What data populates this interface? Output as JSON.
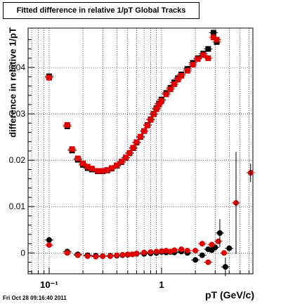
{
  "chart_data": {
    "type": "scatter",
    "title": "Fitted difference in relative 1/pT  Global Tracks",
    "xlabel": "pT (GeV/c)",
    "ylabel": "difference in relative 1/pT",
    "x_scale": "log",
    "xlim": [
      0.065,
      6.5
    ],
    "ylim": [
      -0.0045,
      0.0485
    ],
    "x_ticks": [
      {
        "value": 0.1,
        "label": "10⁻¹"
      },
      {
        "value": 1,
        "label": "1"
      }
    ],
    "y_ticks": [
      {
        "value": 0,
        "label": "0"
      },
      {
        "value": 0.01,
        "label": "0.01"
      },
      {
        "value": 0.02,
        "label": "0.02"
      },
      {
        "value": 0.03,
        "label": "0.03"
      },
      {
        "value": 0.04,
        "label": "0.04"
      }
    ],
    "grid": true,
    "series": [
      {
        "color": "#000000",
        "points": [
          [
            0.1,
            0.0381
          ],
          [
            0.145,
            0.0273
          ],
          [
            0.16,
            0.0221
          ],
          [
            0.18,
            0.0201
          ],
          [
            0.2,
            0.019
          ],
          [
            0.22,
            0.0183
          ],
          [
            0.24,
            0.018
          ],
          [
            0.27,
            0.0176
          ],
          [
            0.3,
            0.0176
          ],
          [
            0.33,
            0.0178
          ],
          [
            0.36,
            0.0182
          ],
          [
            0.4,
            0.0188
          ],
          [
            0.44,
            0.0196
          ],
          [
            0.48,
            0.0205
          ],
          [
            0.52,
            0.0215
          ],
          [
            0.56,
            0.0226
          ],
          [
            0.6,
            0.0238
          ],
          [
            0.65,
            0.025
          ],
          [
            0.7,
            0.0263
          ],
          [
            0.75,
            0.0276
          ],
          [
            0.8,
            0.0288
          ],
          [
            0.85,
            0.03
          ],
          [
            0.9,
            0.0312
          ],
          [
            0.95,
            0.0322
          ],
          [
            1.0,
            0.0331
          ],
          [
            1.1,
            0.0345
          ],
          [
            1.2,
            0.0356
          ],
          [
            1.3,
            0.0368
          ],
          [
            1.4,
            0.0377
          ],
          [
            1.5,
            0.0385
          ],
          [
            1.7,
            0.0397
          ],
          [
            1.9,
            0.041
          ],
          [
            2.1,
            0.042
          ],
          [
            2.35,
            0.043
          ],
          [
            2.6,
            0.044
          ],
          [
            2.9,
            0.0475
          ],
          [
            3.1,
            0.0455
          ]
        ]
      },
      {
        "color": "#e00000",
        "points": [
          [
            0.1,
            0.0378
          ],
          [
            0.145,
            0.0276
          ],
          [
            0.16,
            0.0224
          ],
          [
            0.18,
            0.0204
          ],
          [
            0.2,
            0.0193
          ],
          [
            0.22,
            0.0186
          ],
          [
            0.24,
            0.0182
          ],
          [
            0.27,
            0.0177
          ],
          [
            0.3,
            0.0177
          ],
          [
            0.33,
            0.0179
          ],
          [
            0.36,
            0.0183
          ],
          [
            0.4,
            0.0189
          ],
          [
            0.44,
            0.0197
          ],
          [
            0.48,
            0.0206
          ],
          [
            0.52,
            0.0216
          ],
          [
            0.56,
            0.0227
          ],
          [
            0.6,
            0.0239
          ],
          [
            0.65,
            0.0251
          ],
          [
            0.7,
            0.0263
          ],
          [
            0.75,
            0.0275
          ],
          [
            0.8,
            0.0287
          ],
          [
            0.85,
            0.0299
          ],
          [
            0.9,
            0.031
          ],
          [
            0.95,
            0.032
          ],
          [
            1.0,
            0.0328
          ],
          [
            1.1,
            0.0342
          ],
          [
            1.2,
            0.0353
          ],
          [
            1.3,
            0.0364
          ],
          [
            1.4,
            0.0374
          ],
          [
            1.5,
            0.0382
          ],
          [
            1.7,
            0.0393
          ],
          [
            1.9,
            0.0406
          ],
          [
            2.1,
            0.0418
          ],
          [
            2.35,
            0.0427
          ],
          [
            2.6,
            0.042
          ],
          [
            2.9,
            0.0465
          ],
          [
            3.1,
            0.046
          ]
        ]
      },
      {
        "color": "#000000",
        "points": [
          [
            0.1,
            0.0028
          ],
          [
            0.145,
            0.0003
          ],
          [
            0.18,
            -0.0003
          ],
          [
            0.22,
            -0.0005
          ],
          [
            0.26,
            -0.0006
          ],
          [
            0.3,
            -0.0007
          ],
          [
            0.35,
            -0.0006
          ],
          [
            0.4,
            -0.0006
          ],
          [
            0.45,
            -0.0005
          ],
          [
            0.5,
            -0.0004
          ],
          [
            0.55,
            -0.0003
          ],
          [
            0.6,
            -0.0002
          ],
          [
            0.7,
            -0.0002
          ],
          [
            0.8,
            -0.0001
          ],
          [
            0.9,
            0.0
          ],
          [
            1.0,
            0.0002
          ],
          [
            1.1,
            0.0001
          ],
          [
            1.2,
            0.0002
          ],
          [
            1.3,
            0.0001
          ],
          [
            1.5,
            0.0003
          ],
          [
            1.7,
            0.0
          ],
          [
            2.0,
            -0.0015
          ],
          [
            2.3,
            -0.0005
          ],
          [
            2.6,
            0.0008
          ],
          [
            2.8,
            0.0006
          ],
          [
            3.0,
            0.0012
          ],
          [
            3.3,
            0.0043
          ],
          [
            3.7,
            -0.003
          ],
          [
            4.0,
            0.001
          ]
        ]
      },
      {
        "color": "#e00000",
        "points": [
          [
            0.1,
            0.0017
          ],
          [
            0.145,
            0.0
          ],
          [
            0.18,
            -0.0005
          ],
          [
            0.22,
            -0.0007
          ],
          [
            0.26,
            -0.0008
          ],
          [
            0.3,
            -0.0007
          ],
          [
            0.35,
            -0.0007
          ],
          [
            0.4,
            -0.0005
          ],
          [
            0.45,
            -0.0004
          ],
          [
            0.5,
            -0.0003
          ],
          [
            0.55,
            -0.0003
          ],
          [
            0.6,
            -0.0001
          ],
          [
            0.7,
            0.0001
          ],
          [
            0.8,
            0.0002
          ],
          [
            0.9,
            0.0003
          ],
          [
            1.0,
            0.0004
          ],
          [
            1.1,
            0.0005
          ],
          [
            1.2,
            0.0003
          ],
          [
            1.3,
            0.0006
          ],
          [
            1.5,
            0.0008
          ],
          [
            1.7,
            0.0005
          ],
          [
            2.0,
            0.0005
          ],
          [
            2.3,
            0.002
          ],
          [
            2.6,
            -0.002
          ],
          [
            2.8,
            0.0018
          ],
          [
            3.2,
            0.0025
          ],
          [
            3.6,
            0.0
          ],
          [
            4.6,
            0.0108
          ],
          [
            6.2,
            0.0173
          ]
        ]
      }
    ]
  },
  "footer": {
    "timestamp": "Fri Oct 28 09:16:40 2011"
  }
}
